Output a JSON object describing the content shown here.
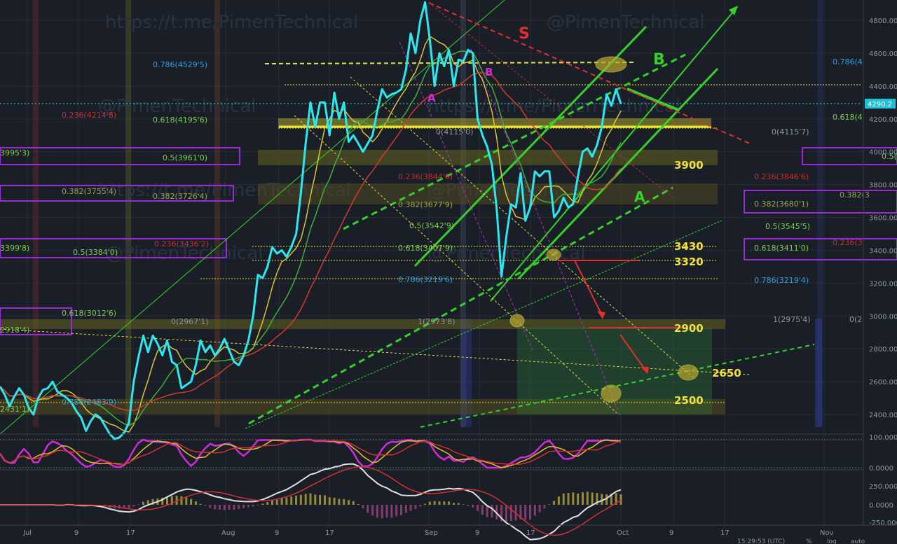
{
  "watermark": {
    "text": "https://t.me/PimenTechnical",
    "handle": "@PimenTechnical",
    "brand": "@PimenTechnical"
  },
  "colors": {
    "background": "#1a1f27",
    "price_line": "#2ce6f0",
    "ma_fast": "#d8c43a",
    "ma_mid": "#3fae3a",
    "ma_slow": "#d13a2c",
    "fib_yellow": "#e8e040",
    "trend_green": "#35d12a",
    "resistance_red": "#e03030",
    "fib_box_purple": "#9a2bd8",
    "target_green_zone": "#2f7a36",
    "current_price_badge": "#1ec2d8"
  },
  "chart_data": {
    "type": "line",
    "title": "",
    "xlabel": "",
    "ylabel": "",
    "ylim": [
      2360,
      4920
    ],
    "x_ticks": [
      "Jul",
      "9",
      "17",
      "Aug",
      "9",
      "17",
      "Sep",
      "9",
      "17",
      "Oct",
      "9",
      "17",
      "Nov"
    ],
    "y_ticks": [
      "4800.00",
      "4600.00",
      "4400.00",
      "4200.00",
      "4000.00",
      "3800.00",
      "3600.00",
      "3400.00",
      "3200.00",
      "3000.00",
      "2800.00",
      "2600.00",
      "2400.00"
    ],
    "current_price": "4290.2",
    "series": [
      {
        "values": [
          2570,
          2520,
          2450,
          2510,
          2560,
          2520,
          2440,
          2400,
          2500,
          2550,
          2560,
          2600,
          2540,
          2520,
          2500,
          2470,
          2420,
          2380,
          2300,
          2360,
          2400,
          2380,
          2330,
          2280,
          2250,
          2260,
          2290,
          2350,
          2600,
          2750,
          2880,
          2780,
          2880,
          2830,
          2760,
          2850,
          2720,
          2700,
          2560,
          2580,
          2600,
          2700,
          2850,
          2780,
          2820,
          2760,
          2800,
          2860,
          2790,
          2720,
          2700,
          2760,
          2850,
          3000,
          3250,
          3230,
          3300,
          3420,
          3380,
          3400,
          3360,
          3420,
          3500,
          3750,
          4050,
          4300,
          4150,
          4300,
          4300,
          4100,
          4360,
          4200,
          4300,
          4060,
          4100,
          4050,
          4000,
          4050,
          4100,
          4250,
          4380,
          4330,
          4350,
          4360,
          4380,
          4500,
          4720,
          4600,
          4800,
          4910,
          4680,
          4400,
          4600,
          4520,
          4620,
          4400,
          4560,
          4550,
          4620,
          4600,
          4200,
          4100,
          4030,
          3920,
          3650,
          3240,
          3480,
          3680,
          3660,
          3870,
          3580,
          3660,
          3880,
          3850,
          3880,
          3880,
          3600,
          3640,
          3720,
          3660,
          3680,
          3850,
          4000,
          4020,
          3970,
          4040,
          4150,
          4350,
          4280,
          4380,
          4290
        ]
      }
    ],
    "annotations": [
      {
        "label": "S",
        "color": "#e03030"
      },
      {
        "label": "B",
        "color": "#35d12a"
      },
      {
        "label": "A",
        "color": "#35d12a"
      },
      {
        "label": "A",
        "color": "#d12ad8"
      },
      {
        "label": "B",
        "color": "#d12ad8"
      }
    ],
    "levels": [
      {
        "label": "3900"
      },
      {
        "label": "3430"
      },
      {
        "label": "3320"
      },
      {
        "label": "2900"
      },
      {
        "label": "2650"
      },
      {
        "label": "2500"
      }
    ],
    "fib_labels": [
      {
        "text": "0.786(4529'5)",
        "color": "#2e9fe0"
      },
      {
        "text": "0.236(4214'8)",
        "color": "#c03030"
      },
      {
        "text": "0.618(4195'6)",
        "color": "#7ccc4a"
      },
      {
        "text": "0(4115'0)",
        "color": "#8f96a0"
      },
      {
        "text": "0.5(3961'0)",
        "color": "#7ccc4a"
      },
      {
        "text": "0.236(3844'6)",
        "color": "#c03030"
      },
      {
        "text": "0.382(3755'4)",
        "color": "#9aa34a"
      },
      {
        "text": "0.382(3726'4)",
        "color": "#9aa34a"
      },
      {
        "text": "0.382(3677'9)",
        "color": "#9aa34a"
      },
      {
        "text": "0.5(3542'9)",
        "color": "#7ccc4a"
      },
      {
        "text": "0.236(3436'2)",
        "color": "#c03030"
      },
      {
        "text": "0.618(3407'9)",
        "color": "#7ccc4a"
      },
      {
        "text": "0.5(3384'0)",
        "color": "#7ccc4a"
      },
      {
        "text": "0.786(3219'6)",
        "color": "#2e9fe0"
      },
      {
        "text": "0.618(3012'6)",
        "color": "#7ccc4a"
      },
      {
        "text": "0(2967'1)",
        "color": "#8f96a0"
      },
      {
        "text": "1(2973'8)",
        "color": "#8f96a0"
      },
      {
        "text": "0.786(2483'9)",
        "color": "#2e9fe0"
      },
      {
        "text": "3995'3)",
        "color": "#7ccc4a"
      },
      {
        "text": "3399'8)",
        "color": "#7ccc4a"
      },
      {
        "text": "2918'4)",
        "color": "#7ccc4a"
      },
      {
        "text": "2431'1)",
        "color": "#7ccc4a"
      },
      {
        "text": "0.786(4",
        "color": "#2e9fe0"
      },
      {
        "text": "0.618(4",
        "color": "#7ccc4a"
      },
      {
        "text": "0(4115'7)",
        "color": "#8f96a0"
      },
      {
        "text": "0.5(3",
        "color": "#7ccc4a"
      },
      {
        "text": "0.236(3846'6)",
        "color": "#c03030"
      },
      {
        "text": "0.382(3680'1)",
        "color": "#9aa34a"
      },
      {
        "text": "0.382(3",
        "color": "#9aa34a"
      },
      {
        "text": "0.5(3545'5)",
        "color": "#7ccc4a"
      },
      {
        "text": "0.618(3411'0)",
        "color": "#7ccc4a"
      },
      {
        "text": "0.236(3",
        "color": "#c03030"
      },
      {
        "text": "0.786(3219'4)",
        "color": "#2e9fe0"
      },
      {
        "text": "1(2975'4)",
        "color": "#8f96a0"
      },
      {
        "text": "0(2",
        "color": "#8f96a0"
      }
    ],
    "indicators": [
      {
        "name": "stochastic",
        "y_ticks": [
          "100.0000",
          "0.0000"
        ]
      },
      {
        "name": "macd",
        "y_ticks": [
          "250.0000",
          "0.0000",
          "-250.0000"
        ]
      }
    ],
    "footer": {
      "time": "15:29:53 (UTC)",
      "percent": "%",
      "log": "log",
      "auto": "auto"
    }
  }
}
